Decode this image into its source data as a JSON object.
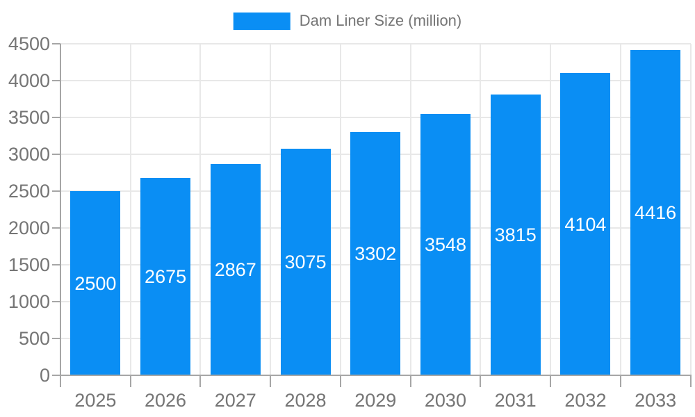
{
  "legend": {
    "label": "Dam Liner Size (million)"
  },
  "chart_data": {
    "type": "bar",
    "title": "Dam Liner Size (million)",
    "categories": [
      "2025",
      "2026",
      "2027",
      "2028",
      "2029",
      "2030",
      "2031",
      "2032",
      "2033"
    ],
    "series": [
      {
        "name": "Dam Liner Size (million)",
        "values": [
          2500,
          2675,
          2867,
          3075,
          3302,
          3548,
          3815,
          4104,
          4416
        ]
      }
    ],
    "values": [
      2500,
      2675,
      2867,
      3075,
      3302,
      3548,
      3815,
      4104,
      4416
    ],
    "value_labels": [
      "2500",
      "2675",
      "2867",
      "3075",
      "3302",
      "3548",
      "3815",
      "4104",
      "4416"
    ],
    "xlabel": "",
    "ylabel": "",
    "ylim": [
      0,
      4500
    ],
    "y_ticks": [
      0,
      500,
      1000,
      1500,
      2000,
      2500,
      3000,
      3500,
      4000,
      4500
    ],
    "grid": true,
    "legend_position": "top center",
    "colors": {
      "bar": "#0a8ef4",
      "value_label": "#ffffff",
      "axis_text": "#757575",
      "legend_text": "#757575",
      "gridline": "#e8e8e8",
      "axis_line": "#a6a6a6"
    }
  }
}
